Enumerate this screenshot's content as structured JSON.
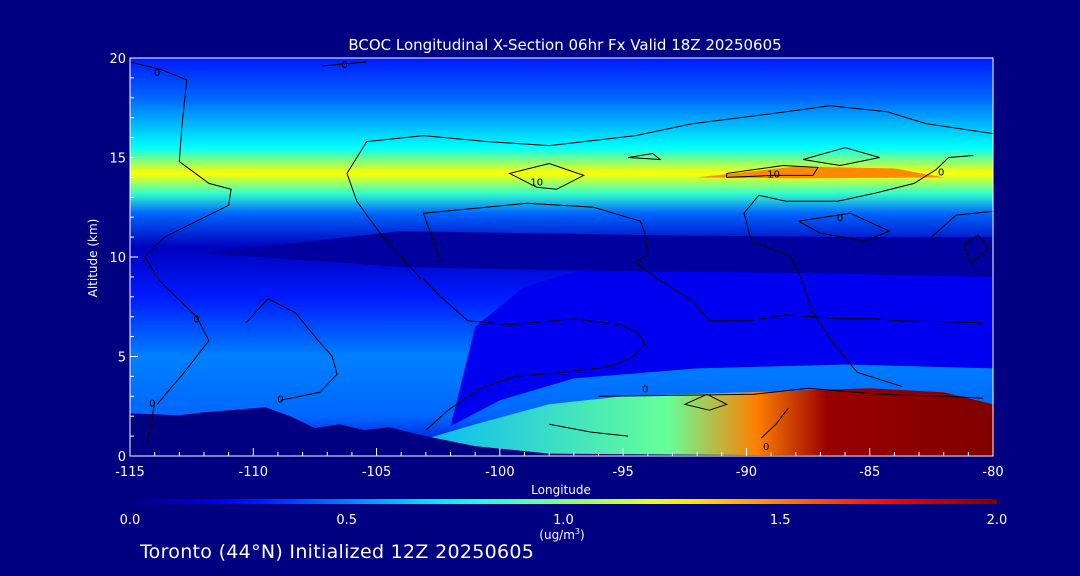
{
  "chart_data": {
    "type": "heatmap",
    "title": "BCOC Longitudinal X-Section 06hr  Fx Valid 18Z 20250605",
    "xlabel": "Longitude",
    "ylabel": "Altitude (km)",
    "xlim": [
      -115,
      -80
    ],
    "ylim": [
      0,
      20
    ],
    "x_ticks": [
      "-115",
      "-110",
      "-105",
      "-100",
      "-95",
      "-90",
      "-85",
      "-80"
    ],
    "y_ticks": [
      "0",
      "5",
      "10",
      "15",
      "20"
    ],
    "x_tick_values": [
      -115,
      -110,
      -105,
      -100,
      -95,
      -90,
      -85,
      -80
    ],
    "y_tick_values": [
      0,
      5,
      10,
      15,
      20
    ],
    "colorbar": {
      "min": 0.0,
      "max": 2.0,
      "labels": [
        "0.0",
        "0.5",
        "1.0",
        "1.5",
        "2.0"
      ],
      "label_values": [
        0.0,
        0.5,
        1.0,
        1.5,
        2.0
      ],
      "units": "(ug/m",
      "units_sup": "3",
      "units_close": ")",
      "colormap": "jet"
    },
    "contour_labels": [
      {
        "text": "0",
        "lon": -113.9,
        "alt": 19.3
      },
      {
        "text": "0",
        "lon": -106.3,
        "alt": 19.7
      },
      {
        "text": "10",
        "lon": -98.5,
        "alt": 13.8
      },
      {
        "text": "10",
        "lon": -88.9,
        "alt": 14.2
      },
      {
        "text": "0",
        "lon": -86.2,
        "alt": 12.0
      },
      {
        "text": "0",
        "lon": -82.1,
        "alt": 14.3
      },
      {
        "text": "0",
        "lon": -112.3,
        "alt": 6.9
      },
      {
        "text": "0",
        "lon": -108.9,
        "alt": 2.9
      },
      {
        "text": "0",
        "lon": -114.1,
        "alt": 2.7
      },
      {
        "text": "0",
        "lon": -94.1,
        "alt": 3.4
      },
      {
        "text": "0",
        "lon": -89.2,
        "alt": 0.5
      }
    ],
    "bands": [
      {
        "alt": 0.0,
        "value": 0.15
      },
      {
        "alt": 2.0,
        "value": 0.45
      },
      {
        "alt": 5.0,
        "value": 0.5
      },
      {
        "alt": 8.0,
        "value": 0.3
      },
      {
        "alt": 10.5,
        "value": 0.12
      },
      {
        "alt": 12.2,
        "value": 0.45
      },
      {
        "alt": 13.2,
        "value": 0.85
      },
      {
        "alt": 14.2,
        "value": 1.25
      },
      {
        "alt": 15.5,
        "value": 0.75
      },
      {
        "alt": 18.0,
        "value": 0.45
      },
      {
        "alt": 20.0,
        "value": 0.3
      }
    ]
  },
  "footer": {
    "text": "Toronto (44°N) Initialized 12Z 20250605"
  },
  "colors": {
    "background": "#000080",
    "terrain": "#000080",
    "contour": "#000000",
    "text": "#ffffff"
  }
}
